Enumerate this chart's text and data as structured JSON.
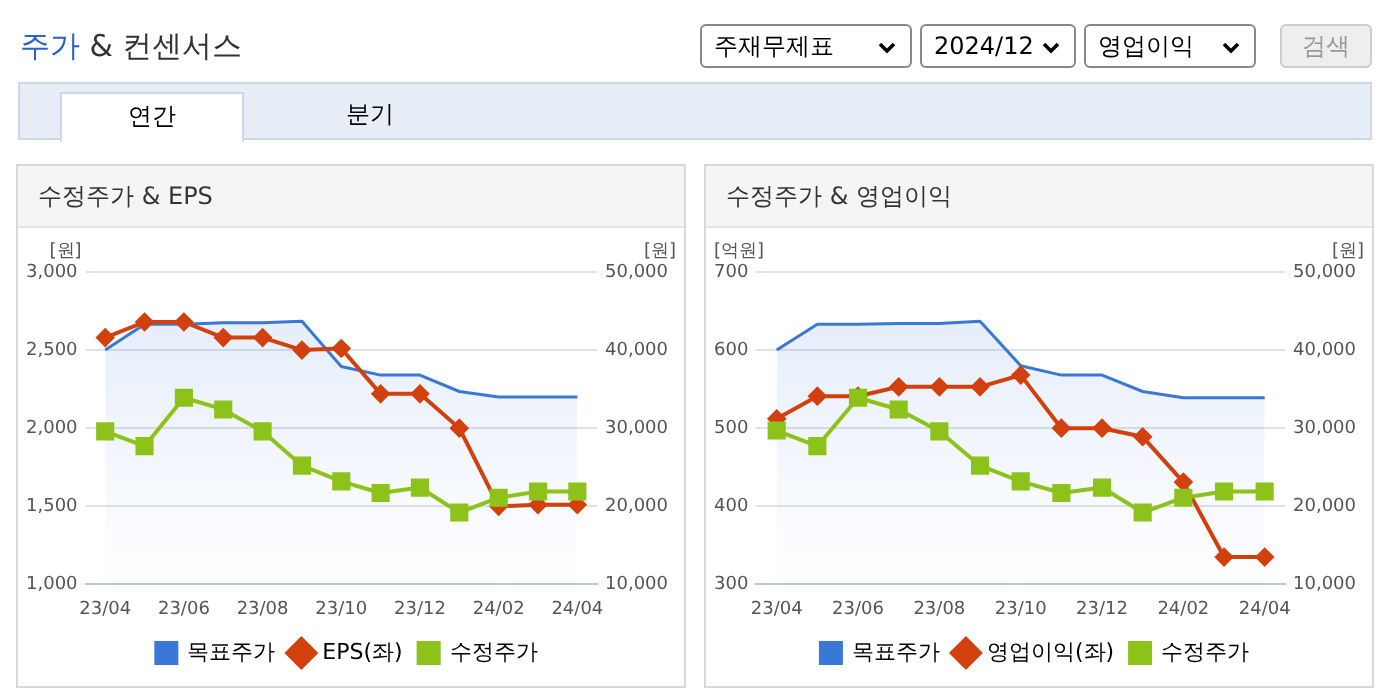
{
  "chart_data": [
    {
      "type": "other",
      "title": "주가 & 컨센서스",
      "annotations": [
        "주재무제표",
        "2024/12",
        "영업이익",
        "검색",
        "연간",
        "분기"
      ]
    },
    {
      "type": "line",
      "title": "수정주가 & EPS",
      "ylabel": "[원]",
      "y2label": "[원]",
      "categories": [
        "23/04",
        null,
        "23/06",
        null,
        "23/08",
        null,
        "23/10",
        null,
        "23/12",
        null,
        "24/02",
        null,
        "24/04"
      ],
      "series": [
        {
          "name": "목표주가",
          "type": "area",
          "axis": "y2",
          "color": "#3a78d8",
          "marker": "none",
          "values": [
            40000,
            43300,
            43300,
            43500,
            43500,
            43700,
            37900,
            36800,
            36800,
            34700,
            34000,
            34000,
            34000
          ]
        },
        {
          "name": "EPS(좌)",
          "type": "line",
          "color": "#d2400e",
          "marker": "diamond",
          "values": [
            2580,
            2680,
            2680,
            2580,
            2580,
            2500,
            2510,
            2220,
            2220,
            2000,
            1500,
            1510,
            1510
          ]
        },
        {
          "name": "수정주가",
          "type": "line",
          "axis": "y2",
          "color": "#8cc21a",
          "marker": "square",
          "values": [
            29600,
            27700,
            33900,
            32400,
            29600,
            25200,
            23200,
            21700,
            22400,
            19200,
            21100,
            21900,
            21900
          ]
        }
      ],
      "ylim": [
        1000,
        3000
      ],
      "yticks": [
        {
          "value": 1000,
          "label": "1,000"
        },
        {
          "value": 1500,
          "label": "1,500"
        },
        {
          "value": 2000,
          "label": "2,000"
        },
        {
          "value": 2500,
          "label": "2,500"
        },
        {
          "value": 3000,
          "label": "3,000"
        }
      ],
      "y2lim": [
        10000,
        50000
      ],
      "y2ticks": [
        {
          "value": 10000,
          "label": "10,000"
        },
        {
          "value": 20000,
          "label": "20,000"
        },
        {
          "value": 30000,
          "label": "30,000"
        },
        {
          "value": 40000,
          "label": "40,000"
        },
        {
          "value": 50000,
          "label": "50,000"
        }
      ],
      "grid": "y",
      "legend": "bottom"
    },
    {
      "type": "line",
      "title": "수정주가 & 영업이익",
      "ylabel": "[억원]",
      "y2label": "[원]",
      "categories": [
        "23/04",
        null,
        "23/06",
        null,
        "23/08",
        null,
        "23/10",
        null,
        "23/12",
        null,
        "24/02",
        null,
        "24/04"
      ],
      "series": [
        {
          "name": "목표주가",
          "type": "area",
          "axis": "y2",
          "color": "#3a78d8",
          "marker": "none",
          "values": [
            40000,
            43300,
            43300,
            43400,
            43400,
            43700,
            38000,
            36800,
            36800,
            34700,
            33900,
            33900,
            33900
          ]
        },
        {
          "name": "영업이익(좌)",
          "type": "line",
          "color": "#d2400e",
          "marker": "diamond",
          "values": [
            512,
            541,
            541,
            553,
            553,
            553,
            568,
            500,
            500,
            489,
            431,
            335,
            335
          ]
        },
        {
          "name": "수정주가",
          "type": "line",
          "axis": "y2",
          "color": "#8cc21a",
          "marker": "square",
          "values": [
            29700,
            27700,
            33900,
            32400,
            29600,
            25200,
            23200,
            21700,
            22400,
            19200,
            21100,
            21900,
            21900
          ]
        }
      ],
      "ylim": [
        300,
        700
      ],
      "yticks": [
        300,
        400,
        500,
        600,
        700
      ],
      "y2lim": [
        10000,
        50000
      ],
      "y2ticks": [
        {
          "value": 10000,
          "label": "10,000"
        },
        {
          "value": 20000,
          "label": "20,000"
        },
        {
          "value": 30000,
          "label": "30,000"
        },
        {
          "value": 40000,
          "label": "40,000"
        },
        {
          "value": 50000,
          "label": "50,000"
        }
      ],
      "grid": "y",
      "legend": "bottom"
    }
  ]
}
